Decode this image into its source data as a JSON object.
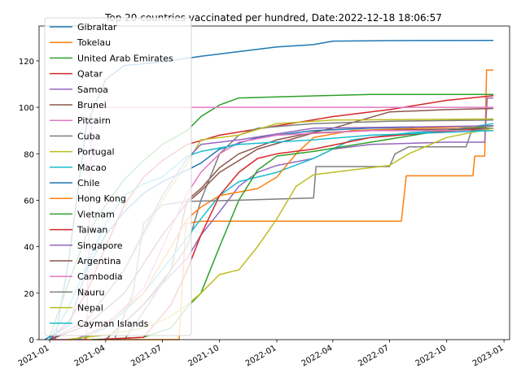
{
  "chart_data": {
    "type": "line",
    "title": "Top 20 countries vaccinated per hundred, Date:2022-12-18 18:06:57",
    "xlabel": "",
    "ylabel": "",
    "xlim": [
      "2020-12-15",
      "2023-01-10"
    ],
    "ylim": [
      0,
      135
    ],
    "x_ticks": [
      "2021-01",
      "2021-04",
      "2021-07",
      "2021-10",
      "2022-01",
      "2022-04",
      "2022-07",
      "2022-10",
      "2023-01"
    ],
    "y_ticks": [
      0,
      20,
      40,
      60,
      80,
      100,
      120
    ],
    "grid": false,
    "legend_position": "upper-left",
    "series": [
      {
        "name": "Gibraltar",
        "color": "#1f77b4",
        "points": [
          [
            "2021-01-10",
            0
          ],
          [
            "2021-02-01",
            35
          ],
          [
            "2021-03-01",
            92
          ],
          [
            "2021-04-01",
            112
          ],
          [
            "2021-05-01",
            118
          ],
          [
            "2021-07-01",
            119.5
          ],
          [
            "2021-09-01",
            122
          ],
          [
            "2021-11-01",
            124
          ],
          [
            "2022-01-01",
            126
          ],
          [
            "2022-03-01",
            127
          ],
          [
            "2022-04-01",
            128.5
          ],
          [
            "2022-07-01",
            128.7
          ],
          [
            "2022-12-15",
            128.8
          ]
        ]
      },
      {
        "name": "Tokelau",
        "color": "#ff7f0e",
        "points": [
          [
            "2021-01-01",
            0
          ],
          [
            "2021-07-28",
            0
          ],
          [
            "2021-08-08",
            50
          ],
          [
            "2021-09-01",
            51
          ],
          [
            "2022-07-20",
            51
          ],
          [
            "2022-07-28",
            70.5
          ],
          [
            "2022-11-12",
            70.5
          ],
          [
            "2022-11-15",
            79
          ],
          [
            "2022-12-01",
            79
          ],
          [
            "2022-12-04",
            116
          ],
          [
            "2022-12-15",
            116
          ]
        ]
      },
      {
        "name": "United Arab Emirates",
        "color": "#2ca02c",
        "points": [
          [
            "2021-01-01",
            1
          ],
          [
            "2021-02-01",
            25
          ],
          [
            "2021-03-01",
            45
          ],
          [
            "2021-04-01",
            58
          ],
          [
            "2021-05-01",
            69
          ],
          [
            "2021-06-01",
            77
          ],
          [
            "2021-07-01",
            84
          ],
          [
            "2021-08-10",
            90
          ],
          [
            "2021-09-01",
            96
          ],
          [
            "2021-10-01",
            101
          ],
          [
            "2021-11-01",
            104
          ],
          [
            "2022-01-01",
            104.5
          ],
          [
            "2022-06-01",
            105.5
          ],
          [
            "2022-12-15",
            105.5
          ]
        ]
      },
      {
        "name": "Qatar",
        "color": "#d62728",
        "points": [
          [
            "2021-01-01",
            0
          ],
          [
            "2021-02-01",
            8
          ],
          [
            "2021-03-01",
            20
          ],
          [
            "2021-04-01",
            40
          ],
          [
            "2021-05-01",
            58
          ],
          [
            "2021-06-01",
            70
          ],
          [
            "2021-07-01",
            77
          ],
          [
            "2021-08-10",
            84
          ],
          [
            "2021-10-01",
            88
          ],
          [
            "2022-01-01",
            92
          ],
          [
            "2022-04-01",
            96
          ],
          [
            "2022-07-01",
            99
          ],
          [
            "2022-10-01",
            103
          ],
          [
            "2022-12-15",
            105
          ]
        ]
      },
      {
        "name": "Samoa",
        "color": "#9467bd",
        "points": [
          [
            "2021-04-01",
            0
          ],
          [
            "2021-06-01",
            15
          ],
          [
            "2021-07-15",
            28
          ],
          [
            "2021-08-10",
            35
          ],
          [
            "2021-09-01",
            45
          ],
          [
            "2021-10-01",
            55
          ],
          [
            "2021-11-01",
            66
          ],
          [
            "2021-12-01",
            72
          ],
          [
            "2022-01-01",
            75
          ],
          [
            "2022-03-01",
            78
          ],
          [
            "2022-04-01",
            82
          ],
          [
            "2022-06-01",
            84
          ],
          [
            "2022-10-01",
            85
          ],
          [
            "2022-12-01",
            85
          ],
          [
            "2022-12-05",
            104
          ],
          [
            "2022-12-15",
            104
          ]
        ]
      },
      {
        "name": "Brunei",
        "color": "#8c564b",
        "points": [
          [
            "2021-04-01",
            0
          ],
          [
            "2021-06-01",
            15
          ],
          [
            "2021-07-15",
            30
          ],
          [
            "2021-08-10",
            60
          ],
          [
            "2021-09-01",
            65
          ],
          [
            "2021-10-01",
            74
          ],
          [
            "2021-11-01",
            80
          ],
          [
            "2021-12-01",
            83
          ],
          [
            "2022-01-01",
            86
          ],
          [
            "2022-04-01",
            91
          ],
          [
            "2022-07-01",
            98
          ],
          [
            "2022-10-01",
            99
          ],
          [
            "2022-12-15",
            99.5
          ]
        ]
      },
      {
        "name": "Pitcairn",
        "color": "#e377c2",
        "points": [
          [
            "2021-01-01",
            0
          ],
          [
            "2021-03-01",
            0
          ],
          [
            "2021-03-10",
            100
          ],
          [
            "2022-12-15",
            100
          ]
        ]
      },
      {
        "name": "Cuba",
        "color": "#7f7f7f",
        "points": [
          [
            "2021-05-01",
            0
          ],
          [
            "2021-06-01",
            12
          ],
          [
            "2021-07-15",
            30
          ],
          [
            "2021-08-10",
            40
          ],
          [
            "2021-09-01",
            60
          ],
          [
            "2021-10-01",
            80
          ],
          [
            "2021-11-01",
            88
          ],
          [
            "2021-12-01",
            91
          ],
          [
            "2022-03-01",
            93
          ],
          [
            "2022-07-01",
            94
          ],
          [
            "2022-12-15",
            94.5
          ]
        ]
      },
      {
        "name": "Portugal",
        "color": "#bcbd22",
        "points": [
          [
            "2021-01-01",
            0
          ],
          [
            "2021-03-01",
            8
          ],
          [
            "2021-05-01",
            30
          ],
          [
            "2021-07-01",
            60
          ],
          [
            "2021-08-10",
            76
          ],
          [
            "2021-09-01",
            86
          ],
          [
            "2021-11-01",
            88
          ],
          [
            "2022-01-01",
            93
          ],
          [
            "2022-04-01",
            94.5
          ],
          [
            "2022-12-15",
            95
          ]
        ]
      },
      {
        "name": "Macao",
        "color": "#17becf",
        "points": [
          [
            "2021-02-15",
            0
          ],
          [
            "2021-04-01",
            5
          ],
          [
            "2021-06-01",
            20
          ],
          [
            "2021-07-15",
            35
          ],
          [
            "2021-08-10",
            44
          ],
          [
            "2021-09-01",
            52
          ],
          [
            "2021-10-01",
            62
          ],
          [
            "2021-11-01",
            68
          ],
          [
            "2022-01-01",
            72
          ],
          [
            "2022-03-01",
            78
          ],
          [
            "2022-05-01",
            86
          ],
          [
            "2022-08-01",
            89
          ],
          [
            "2022-10-01",
            90
          ],
          [
            "2022-12-15",
            93
          ]
        ]
      },
      {
        "name": "Chile",
        "color": "#1f77b4",
        "points": [
          [
            "2020-12-24",
            0
          ],
          [
            "2021-02-01",
            6
          ],
          [
            "2021-03-01",
            30
          ],
          [
            "2021-04-01",
            45
          ],
          [
            "2021-05-01",
            55
          ],
          [
            "2021-06-01",
            63
          ],
          [
            "2021-07-01",
            68
          ],
          [
            "2021-08-10",
            73
          ],
          [
            "2021-09-01",
            76
          ],
          [
            "2021-10-01",
            82
          ],
          [
            "2021-12-01",
            87
          ],
          [
            "2022-03-01",
            90
          ],
          [
            "2022-06-01",
            91
          ],
          [
            "2022-12-15",
            92
          ]
        ]
      },
      {
        "name": "Hong Kong",
        "color": "#ff7f0e",
        "points": [
          [
            "2021-02-25",
            0
          ],
          [
            "2021-04-01",
            7
          ],
          [
            "2021-06-01",
            20
          ],
          [
            "2021-07-15",
            40
          ],
          [
            "2021-08-10",
            52
          ],
          [
            "2021-09-01",
            57
          ],
          [
            "2021-10-01",
            62
          ],
          [
            "2021-12-01",
            65
          ],
          [
            "2022-01-01",
            70
          ],
          [
            "2022-02-01",
            80
          ],
          [
            "2022-03-01",
            87
          ],
          [
            "2022-05-01",
            90
          ],
          [
            "2022-12-15",
            92
          ]
        ]
      },
      {
        "name": "Vietnam",
        "color": "#2ca02c",
        "points": [
          [
            "2021-03-10",
            0
          ],
          [
            "2021-06-01",
            1
          ],
          [
            "2021-07-15",
            5
          ],
          [
            "2021-08-10",
            14
          ],
          [
            "2021-09-01",
            20
          ],
          [
            "2021-10-01",
            40
          ],
          [
            "2021-11-01",
            60
          ],
          [
            "2021-12-01",
            73
          ],
          [
            "2022-01-01",
            79
          ],
          [
            "2022-03-01",
            81
          ],
          [
            "2022-06-01",
            85
          ],
          [
            "2022-09-01",
            89
          ],
          [
            "2022-12-15",
            92
          ]
        ]
      },
      {
        "name": "Taiwan",
        "color": "#d62728",
        "points": [
          [
            "2021-03-20",
            0
          ],
          [
            "2021-06-01",
            1
          ],
          [
            "2021-07-15",
            15
          ],
          [
            "2021-08-10",
            30
          ],
          [
            "2021-09-01",
            45
          ],
          [
            "2021-10-01",
            62
          ],
          [
            "2021-11-01",
            72
          ],
          [
            "2021-12-01",
            78
          ],
          [
            "2022-01-01",
            80
          ],
          [
            "2022-03-01",
            82
          ],
          [
            "2022-06-01",
            87
          ],
          [
            "2022-09-01",
            89
          ],
          [
            "2022-12-15",
            91
          ]
        ]
      },
      {
        "name": "Singapore",
        "color": "#9467bd",
        "points": [
          [
            "2021-01-01",
            0
          ],
          [
            "2021-03-01",
            8
          ],
          [
            "2021-05-01",
            30
          ],
          [
            "2021-07-01",
            62
          ],
          [
            "2021-08-10",
            78
          ],
          [
            "2021-09-01",
            84
          ],
          [
            "2021-11-01",
            86
          ],
          [
            "2022-03-01",
            91
          ],
          [
            "2022-12-15",
            92
          ]
        ]
      },
      {
        "name": "Argentina",
        "color": "#8c564b",
        "points": [
          [
            "2021-01-01",
            0
          ],
          [
            "2021-03-01",
            6
          ],
          [
            "2021-05-01",
            20
          ],
          [
            "2021-07-01",
            45
          ],
          [
            "2021-08-10",
            59
          ],
          [
            "2021-09-01",
            64
          ],
          [
            "2021-10-01",
            72
          ],
          [
            "2021-12-01",
            82
          ],
          [
            "2022-03-01",
            89
          ],
          [
            "2022-06-01",
            90
          ],
          [
            "2022-12-15",
            91
          ]
        ]
      },
      {
        "name": "Cambodia",
        "color": "#e377c2",
        "points": [
          [
            "2021-02-10",
            0
          ],
          [
            "2021-04-01",
            6
          ],
          [
            "2021-06-01",
            22
          ],
          [
            "2021-07-15",
            48
          ],
          [
            "2021-08-10",
            63
          ],
          [
            "2021-09-01",
            72
          ],
          [
            "2021-10-01",
            80
          ],
          [
            "2021-11-01",
            85
          ],
          [
            "2022-01-01",
            88
          ],
          [
            "2022-06-01",
            90
          ],
          [
            "2022-12-15",
            90
          ]
        ]
      },
      {
        "name": "Nauru",
        "color": "#7f7f7f",
        "points": [
          [
            "2021-04-15",
            0
          ],
          [
            "2021-05-15",
            20
          ],
          [
            "2021-06-01",
            50
          ],
          [
            "2021-07-01",
            58
          ],
          [
            "2021-08-10",
            59.5
          ],
          [
            "2021-11-01",
            60
          ],
          [
            "2022-03-01",
            61
          ],
          [
            "2022-03-05",
            74.5
          ],
          [
            "2022-07-01",
            74.5
          ],
          [
            "2022-07-10",
            80
          ],
          [
            "2022-08-01",
            83
          ],
          [
            "2022-11-01",
            83
          ],
          [
            "2022-11-10",
            90
          ],
          [
            "2022-12-15",
            91
          ]
        ]
      },
      {
        "name": "Nepal",
        "color": "#bcbd22",
        "points": [
          [
            "2021-01-27",
            0
          ],
          [
            "2021-04-01",
            2
          ],
          [
            "2021-06-01",
            5
          ],
          [
            "2021-07-15",
            10
          ],
          [
            "2021-08-10",
            15
          ],
          [
            "2021-09-01",
            20
          ],
          [
            "2021-10-01",
            28
          ],
          [
            "2021-11-01",
            30
          ],
          [
            "2021-12-01",
            40
          ],
          [
            "2022-01-01",
            52
          ],
          [
            "2022-02-01",
            66
          ],
          [
            "2022-03-01",
            71
          ],
          [
            "2022-05-01",
            73
          ],
          [
            "2022-07-01",
            75
          ],
          [
            "2022-08-01",
            80
          ],
          [
            "2022-10-01",
            87
          ],
          [
            "2022-12-15",
            91
          ]
        ]
      },
      {
        "name": "Cayman Islands",
        "color": "#17becf",
        "points": [
          [
            "2021-01-01",
            0
          ],
          [
            "2021-02-01",
            14
          ],
          [
            "2021-03-01",
            32
          ],
          [
            "2021-04-01",
            50
          ],
          [
            "2021-05-01",
            62
          ],
          [
            "2021-06-01",
            67
          ],
          [
            "2021-07-01",
            70
          ],
          [
            "2021-08-10",
            79
          ],
          [
            "2021-09-01",
            81
          ],
          [
            "2021-11-01",
            84
          ],
          [
            "2022-03-01",
            86
          ],
          [
            "2022-06-01",
            88
          ],
          [
            "2022-12-15",
            90
          ]
        ]
      }
    ]
  }
}
